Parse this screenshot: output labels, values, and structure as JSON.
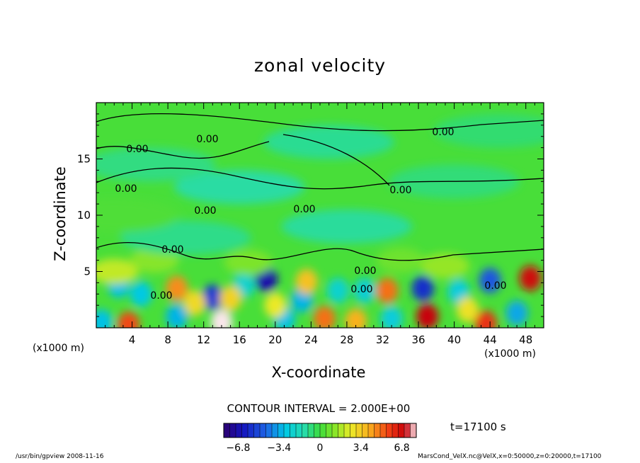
{
  "chart_data": {
    "type": "heatmap",
    "title": "zonal velocity",
    "xlabel": "X-coordinate",
    "ylabel": "Z-coordinate",
    "x_unit": "(x1000 m)",
    "xlim": [
      0,
      50
    ],
    "ylim": [
      0,
      20
    ],
    "x_ticks": [
      4,
      8,
      12,
      16,
      20,
      24,
      28,
      32,
      36,
      40,
      44,
      48
    ],
    "y_ticks": [
      5,
      10,
      15
    ],
    "contour_interval": "CONTOUR INTERVAL = 2.000E+00",
    "contour_labels": [
      "0.00",
      "0.00",
      "0.00",
      "0.00",
      "0.00",
      "0.00",
      "0.00",
      "0.00",
      "0.00",
      "0.00",
      "0.00",
      "0.00"
    ],
    "colorbar": {
      "min": -8,
      "max": 8,
      "tick_values": [
        -6.8,
        -3.4,
        0,
        3.4,
        6.8
      ],
      "tick_labels": [
        "−6.8",
        "−3.4",
        "0",
        "3.4",
        "6.8"
      ]
    },
    "cells": [
      {
        "x": 19,
        "z": 4.3,
        "v": -6.8
      },
      {
        "x": 13,
        "z": 2.7,
        "v": -5.5
      },
      {
        "x": 36.5,
        "z": 3.5,
        "v": -5.8
      },
      {
        "x": 44,
        "z": 4.2,
        "v": -4.8
      },
      {
        "x": 2.5,
        "z": 3.8,
        "v": -3.0
      },
      {
        "x": 5,
        "z": 3.0,
        "v": -2.8
      },
      {
        "x": 23,
        "z": 2.5,
        "v": -3.2
      },
      {
        "x": 27,
        "z": 3.3,
        "v": -2.2
      },
      {
        "x": 30,
        "z": 3.3,
        "v": -2.4
      },
      {
        "x": 40.5,
        "z": 3.2,
        "v": -2.6
      },
      {
        "x": 16.5,
        "z": 3.8,
        "v": -2.2
      },
      {
        "x": 9,
        "z": 1.0,
        "v": -3.2
      },
      {
        "x": 21,
        "z": 0.8,
        "v": -3.0
      },
      {
        "x": 33,
        "z": 0.8,
        "v": -2.6
      },
      {
        "x": 47,
        "z": 1.3,
        "v": -3.4
      },
      {
        "x": 0.6,
        "z": 0.5,
        "v": -3.0
      },
      {
        "x": 9,
        "z": 3.5,
        "v": 4.6
      },
      {
        "x": 32.5,
        "z": 3.3,
        "v": 5.0
      },
      {
        "x": 48.5,
        "z": 4.4,
        "v": 6.8
      },
      {
        "x": 14,
        "z": 0.5,
        "v": 8.0
      },
      {
        "x": 37,
        "z": 1.0,
        "v": 7.0
      },
      {
        "x": 3.6,
        "z": 0.3,
        "v": 5.6
      },
      {
        "x": 25.5,
        "z": 0.8,
        "v": 5.0
      },
      {
        "x": 29,
        "z": 0.6,
        "v": 4.0
      },
      {
        "x": 43.5,
        "z": 0.4,
        "v": 6.0
      },
      {
        "x": 23.5,
        "z": 4.1,
        "v": 3.6
      },
      {
        "x": 11,
        "z": 2.2,
        "v": 3.0
      },
      {
        "x": 15,
        "z": 2.6,
        "v": 3.2
      },
      {
        "x": 20,
        "z": 2.0,
        "v": 2.6
      },
      {
        "x": 41.5,
        "z": 1.6,
        "v": 2.8
      },
      {
        "x": 2,
        "z": 5.0,
        "v": 2.0
      },
      {
        "x": 6.5,
        "z": 6.0,
        "v": 1.2
      },
      {
        "x": 17,
        "z": 5.8,
        "v": 1.0
      },
      {
        "x": 34,
        "z": 6.0,
        "v": 0.8
      },
      {
        "x": 39,
        "z": 5.5,
        "v": 1.4
      },
      {
        "x": 10,
        "z": 8.0,
        "v": -0.9
      },
      {
        "x": 28,
        "z": 9.0,
        "v": -1.1
      },
      {
        "x": 16,
        "z": 12.5,
        "v": -1.2
      },
      {
        "x": 26,
        "z": 16.5,
        "v": -1.0
      },
      {
        "x": 40,
        "z": 13.0,
        "v": -0.7
      },
      {
        "x": 6,
        "z": 14.5,
        "v": -0.8
      },
      {
        "x": 45,
        "z": 17.5,
        "v": -0.6
      },
      {
        "x": 2,
        "z": 10,
        "v": 0.3
      }
    ]
  },
  "footer": {
    "left": "/usr/bin/gpview   2008-11-16",
    "right": "MarsCond_VelX.nc@VelX,x=0:50000,z=0:20000,t=17100"
  },
  "time_label": "t=17100 s"
}
